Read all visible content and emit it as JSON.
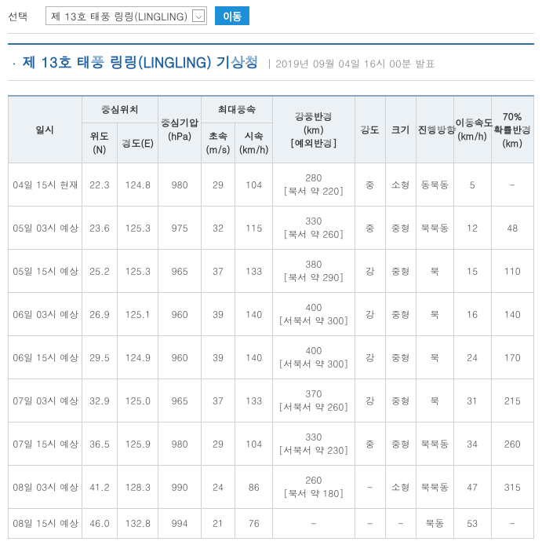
{
  "topbar": {
    "select_label": "선택",
    "dropdown_value": "제 13호 태풍 링링(LINGLING)",
    "go_label": "이동"
  },
  "header": {
    "title": "제 13호 태풍 링링(LINGLING) 기상청",
    "subtitle": "2019년 09월 04일 16시 00분 발표"
  },
  "table": {
    "head": {
      "datetime": "일시",
      "center_pos": "중심위치",
      "lat": "위도(N)",
      "lon": "경도(E)",
      "pressure": "중심기압(hPa)",
      "max_wind": "최대풍속",
      "ms": "초속(m/s)",
      "kmh": "시속(km/h)",
      "radius": "강풍반경(km)[예외반경]",
      "intensity": "강도",
      "size": "크기",
      "direction": "진행방향",
      "speed": "이동속도(km/h)",
      "p70": "70% 확률반경(km)"
    },
    "rows": [
      {
        "dt": "04일 15시 현재",
        "lat": "22.3",
        "lon": "124.8",
        "pres": "980",
        "ms": "29",
        "kmh": "104",
        "rad": "280\n[북서 약 220]",
        "int": "중",
        "size": "소형",
        "dir": "동북동",
        "spd": "5",
        "p70": "-"
      },
      {
        "dt": "05일 03시 예상",
        "lat": "23.6",
        "lon": "125.3",
        "pres": "975",
        "ms": "32",
        "kmh": "115",
        "rad": "330\n[북서 약 260]",
        "int": "중",
        "size": "중형",
        "dir": "북북동",
        "spd": "12",
        "p70": "48"
      },
      {
        "dt": "05일 15시 예상",
        "lat": "25.2",
        "lon": "125.3",
        "pres": "965",
        "ms": "37",
        "kmh": "133",
        "rad": "380\n[북서 약 290]",
        "int": "강",
        "size": "중형",
        "dir": "북",
        "spd": "15",
        "p70": "110"
      },
      {
        "dt": "06일 03시 예상",
        "lat": "26.9",
        "lon": "125.1",
        "pres": "960",
        "ms": "39",
        "kmh": "140",
        "rad": "400\n[서북서 약 300]",
        "int": "강",
        "size": "중형",
        "dir": "북",
        "spd": "16",
        "p70": "140"
      },
      {
        "dt": "06일 15시 예상",
        "lat": "29.5",
        "lon": "124.9",
        "pres": "960",
        "ms": "39",
        "kmh": "140",
        "rad": "400\n[서북서 약 300]",
        "int": "강",
        "size": "중형",
        "dir": "북",
        "spd": "24",
        "p70": "170"
      },
      {
        "dt": "07일 03시 예상",
        "lat": "32.9",
        "lon": "125.0",
        "pres": "965",
        "ms": "37",
        "kmh": "133",
        "rad": "370\n[서북서 약 260]",
        "int": "강",
        "size": "중형",
        "dir": "북",
        "spd": "31",
        "p70": "215"
      },
      {
        "dt": "07일 15시 예상",
        "lat": "36.5",
        "lon": "125.9",
        "pres": "980",
        "ms": "29",
        "kmh": "104",
        "rad": "330\n[서북서 약 230]",
        "int": "중",
        "size": "중형",
        "dir": "북북동",
        "spd": "34",
        "p70": "260"
      },
      {
        "dt": "08일 03시 예상",
        "lat": "41.2",
        "lon": "128.3",
        "pres": "990",
        "ms": "24",
        "kmh": "86",
        "rad": "260\n[북서 약 180]",
        "int": "-",
        "size": "소형",
        "dir": "북북동",
        "spd": "47",
        "p70": "315"
      },
      {
        "dt": "08일 15시 예상",
        "lat": "46.0",
        "lon": "132.8",
        "pres": "994",
        "ms": "21",
        "kmh": "76",
        "rad": "-",
        "int": "-",
        "size": "-",
        "dir": "북동",
        "spd": "53",
        "p70": "-"
      }
    ]
  }
}
